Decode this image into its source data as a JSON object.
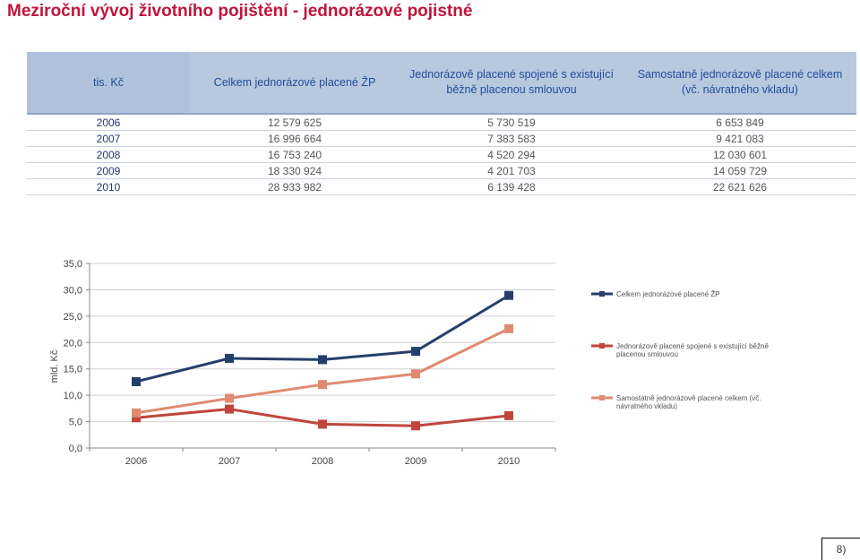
{
  "title": "Meziroční vývoj životního pojištění - jednorázové pojistné",
  "table": {
    "headers": [
      "tis. Kč",
      "Celkem jednorázové placené ŽP",
      "Jednorázově placené spojené s existující běžně placenou smlouvou",
      "Samostatně jednorázově placené celkem (vč. návratného vkladu)"
    ],
    "rows": [
      [
        "2006",
        "12 579 625",
        "5 730 519",
        "6 653 849"
      ],
      [
        "2007",
        "16 996 664",
        "7 383 583",
        "9 421 083"
      ],
      [
        "2008",
        "16 753 240",
        "4 520 294",
        "12 030 601"
      ],
      [
        "2009",
        "18 330 924",
        "4 201 703",
        "14 059 729"
      ],
      [
        "2010",
        "28 933 982",
        "6 139 428",
        "22 621 626"
      ]
    ]
  },
  "chart_data": {
    "type": "line",
    "x": [
      "2006",
      "2007",
      "2008",
      "2009",
      "2010"
    ],
    "ylabel": "mld. Kč",
    "ylim": [
      0,
      35
    ],
    "yticks": [
      "0,0",
      "5,0",
      "10,0",
      "15,0",
      "20,0",
      "25,0",
      "30,0",
      "35,0"
    ],
    "grid": true,
    "legend_position": "right",
    "series": [
      {
        "name": "Celkem jednorázové placené ŽP",
        "color": "#243f6b",
        "values": [
          12.58,
          17.0,
          16.75,
          18.33,
          28.93
        ]
      },
      {
        "name": "Jednorázově placené spojené s existující běžně placenou smlouvou",
        "color": "#c0453c",
        "values": [
          5.73,
          7.38,
          4.52,
          4.2,
          6.14
        ]
      },
      {
        "name": "Samostatně jednorázově placené celkem (vč. návratného vkladu)",
        "color": "#e08a70",
        "values": [
          6.65,
          9.42,
          12.03,
          14.06,
          22.62
        ]
      }
    ]
  },
  "page_number": "8)"
}
